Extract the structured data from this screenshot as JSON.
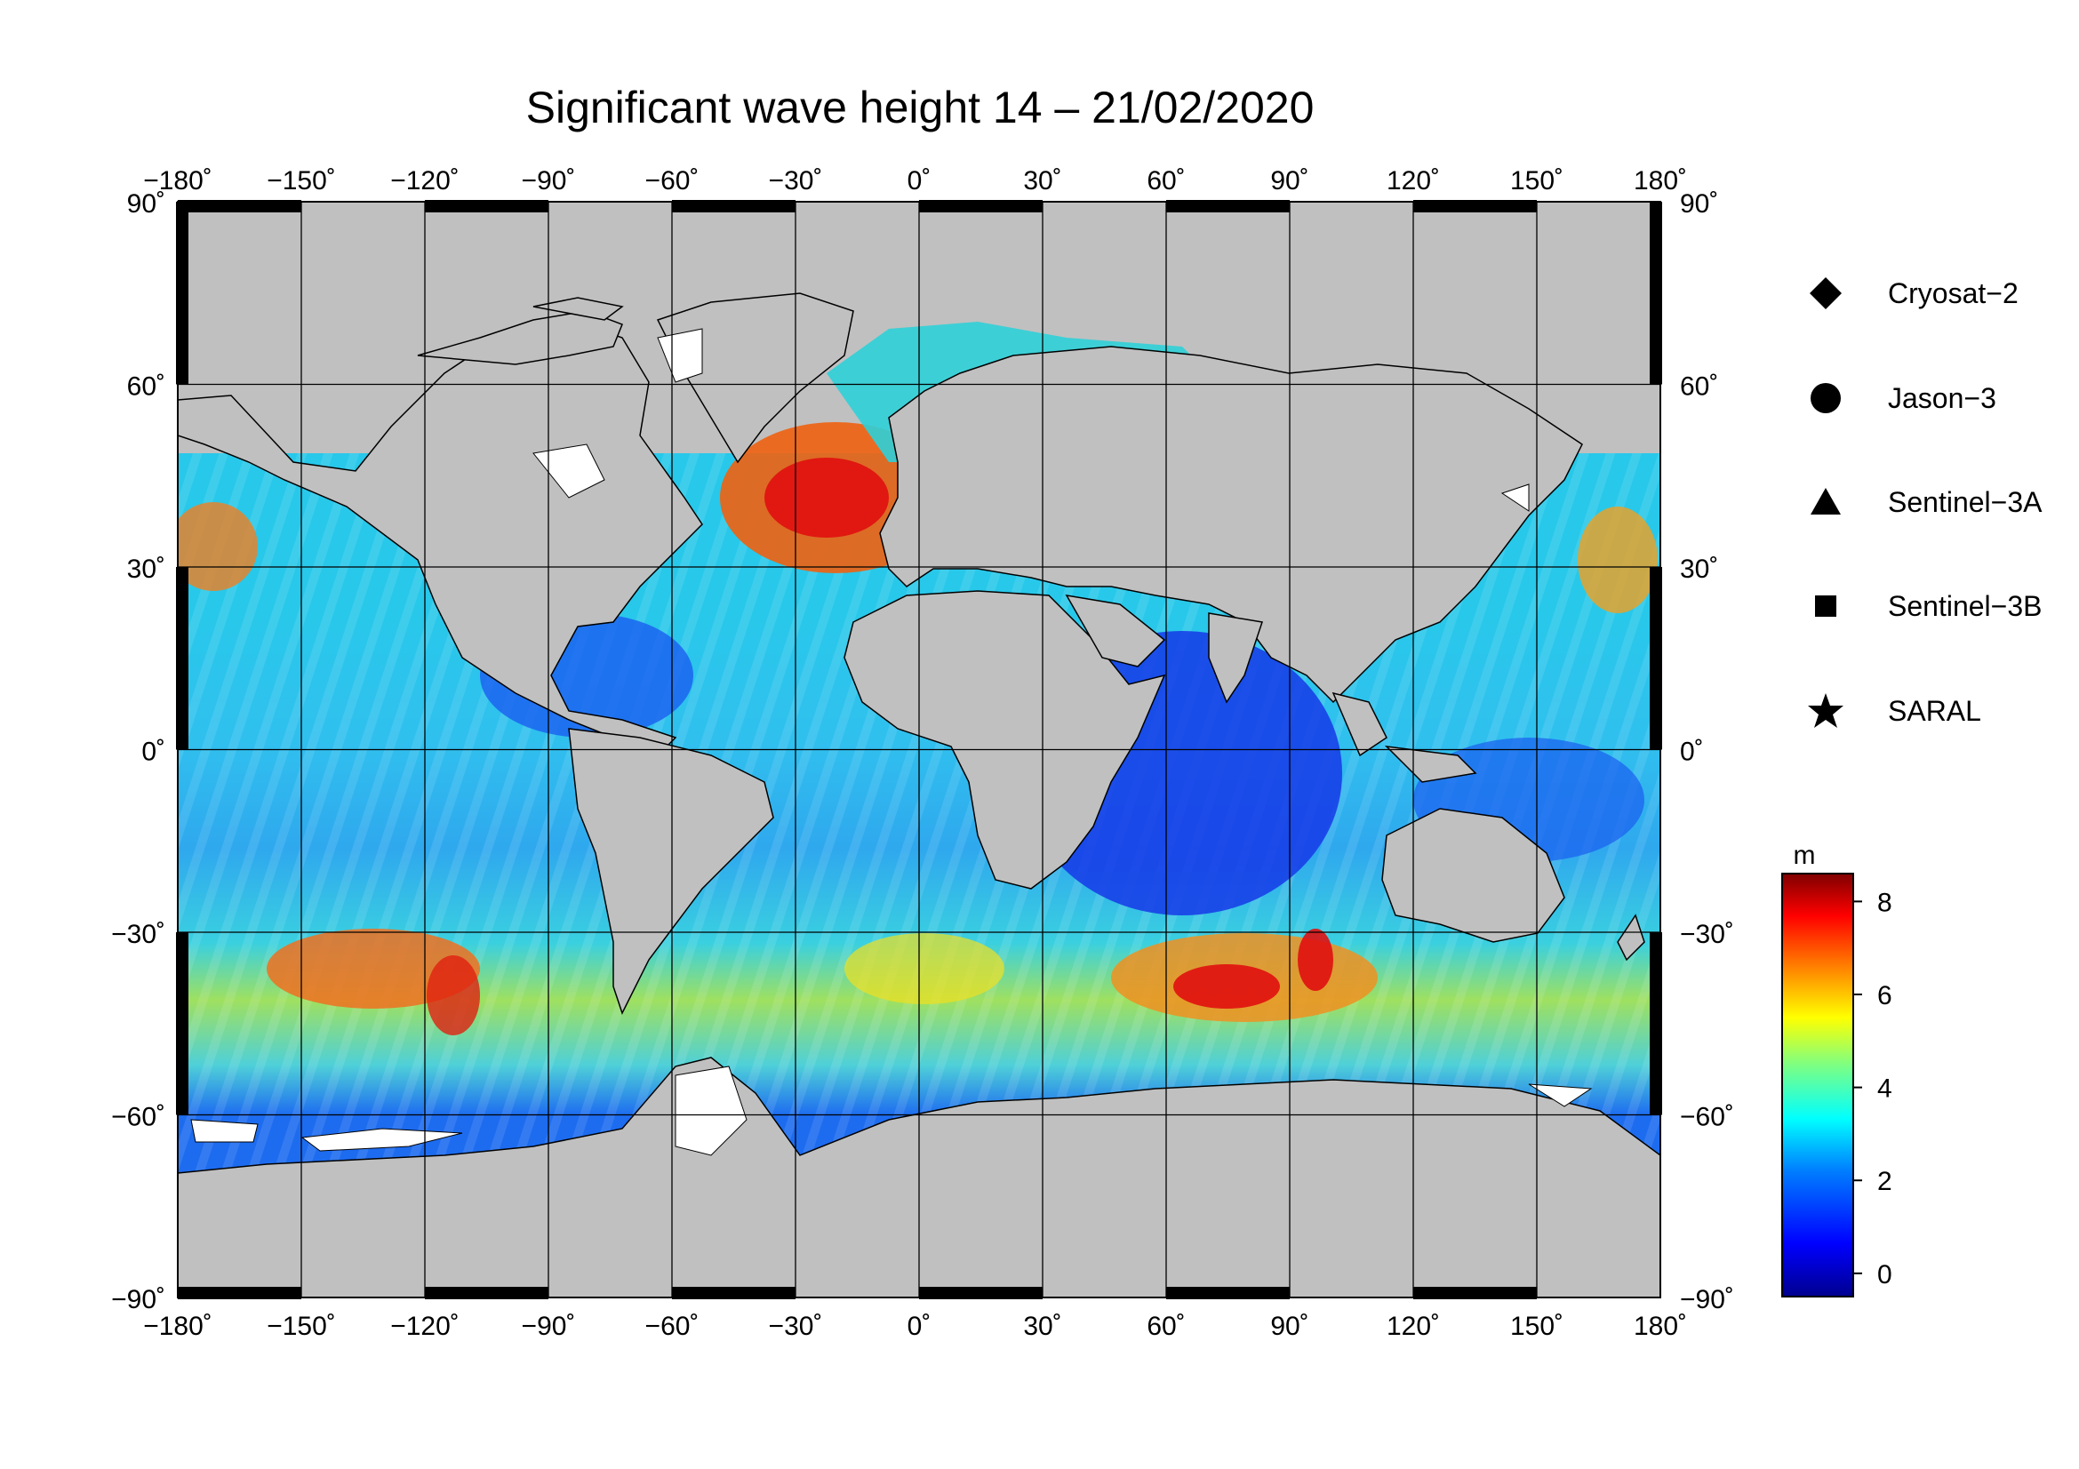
{
  "title": "Significant wave height 14 – 21/02/2020",
  "lon_ticks": [
    "−180˚",
    "−150˚",
    "−120˚",
    "−90˚",
    "−60˚",
    "−30˚",
    "0˚",
    "30˚",
    "60˚",
    "90˚",
    "120˚",
    "150˚",
    "180˚"
  ],
  "lat_ticks_left": [
    "90˚",
    "60˚",
    "30˚",
    "0˚",
    "−30˚",
    "−60˚",
    "−90˚"
  ],
  "lat_ticks_right": [
    "90˚",
    "60˚",
    "30˚",
    "0˚",
    "−30˚",
    "−60˚",
    "−90˚"
  ],
  "legend": [
    {
      "label": "Cryosat−2",
      "icon": "diamond-icon"
    },
    {
      "label": "Jason−3",
      "icon": "circle-icon"
    },
    {
      "label": "Sentinel−3A",
      "icon": "triangle-icon"
    },
    {
      "label": "Sentinel−3B",
      "icon": "square-icon"
    },
    {
      "label": "SARAL",
      "icon": "star-icon"
    }
  ],
  "colorbar": {
    "unit": "m",
    "ticks": [
      "8",
      "6",
      "4",
      "2",
      "0"
    ],
    "range_m": [
      -0.5,
      8.6
    ],
    "colors": [
      "#00008f",
      "#0000ff",
      "#0080ff",
      "#00ffff",
      "#80ff80",
      "#ffff00",
      "#ff8000",
      "#ff0000",
      "#800000"
    ]
  },
  "colors": {
    "land": "#c0c0c0",
    "ice": "#ffffff",
    "low_wave": "#1530e0",
    "mid_wave": "#27b8f0",
    "high_wave": "#e8101a"
  }
}
